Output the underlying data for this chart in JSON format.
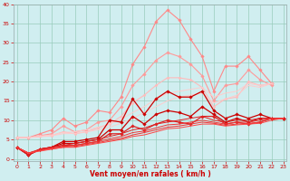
{
  "x": [
    0,
    1,
    2,
    3,
    4,
    5,
    6,
    7,
    8,
    9,
    10,
    11,
    12,
    13,
    14,
    15,
    16,
    17,
    18,
    19,
    20,
    21,
    22,
    23
  ],
  "series": [
    {
      "color": "#ff8888",
      "lw": 0.8,
      "marker": "D",
      "markersize": 1.8,
      "y": [
        5.5,
        5.5,
        6.5,
        7.5,
        10.5,
        8.5,
        9.5,
        12.5,
        12.0,
        16.0,
        24.5,
        29.0,
        35.5,
        38.5,
        36.0,
        31.0,
        26.5,
        17.5,
        24.0,
        24.0,
        26.5,
        23.0,
        19.5,
        null
      ]
    },
    {
      "color": "#ff9999",
      "lw": 0.8,
      "marker": "D",
      "markersize": 1.8,
      "y": [
        5.5,
        5.5,
        6.0,
        6.5,
        8.5,
        7.0,
        7.5,
        9.5,
        10.0,
        13.5,
        19.0,
        22.0,
        25.5,
        27.5,
        26.5,
        24.5,
        21.5,
        15.0,
        19.0,
        19.5,
        23.0,
        20.5,
        19.0,
        null
      ]
    },
    {
      "color": "#ffbbbb",
      "lw": 0.8,
      "marker": "D",
      "markersize": 1.5,
      "y": [
        5.5,
        5.5,
        6.0,
        6.0,
        7.0,
        6.5,
        7.0,
        8.0,
        9.0,
        11.0,
        14.5,
        16.5,
        19.0,
        21.0,
        21.0,
        20.5,
        18.5,
        13.5,
        15.5,
        16.0,
        20.0,
        19.0,
        19.5,
        null
      ]
    },
    {
      "color": "#ffcccc",
      "lw": 0.7,
      "marker": null,
      "markersize": 0,
      "y": [
        5.5,
        5.5,
        5.8,
        6.2,
        6.8,
        7.0,
        7.5,
        8.2,
        9.0,
        10.2,
        12.0,
        13.5,
        15.5,
        17.0,
        17.5,
        18.0,
        18.5,
        16.0,
        17.0,
        17.5,
        19.5,
        19.0,
        19.5,
        null
      ]
    },
    {
      "color": "#ffcccc",
      "lw": 0.7,
      "marker": null,
      "markersize": 0,
      "y": [
        5.5,
        5.5,
        5.7,
        6.0,
        6.5,
        6.6,
        7.0,
        7.5,
        8.2,
        9.2,
        10.5,
        12.0,
        13.5,
        15.0,
        16.0,
        16.5,
        17.0,
        14.5,
        15.5,
        16.5,
        19.0,
        18.5,
        19.5,
        null
      ]
    },
    {
      "color": "#cc0000",
      "lw": 0.9,
      "marker": "D",
      "markersize": 1.8,
      "y": [
        3.0,
        1.0,
        2.5,
        3.0,
        4.5,
        4.5,
        5.0,
        5.5,
        10.0,
        9.5,
        15.5,
        11.5,
        15.5,
        17.5,
        16.0,
        16.0,
        17.5,
        12.5,
        10.5,
        11.5,
        10.5,
        11.5,
        10.5,
        10.5
      ]
    },
    {
      "color": "#cc0000",
      "lw": 0.9,
      "marker": "D",
      "markersize": 1.8,
      "y": [
        3.0,
        1.0,
        2.5,
        3.0,
        4.0,
        4.0,
        4.5,
        5.0,
        7.5,
        7.5,
        11.0,
        9.0,
        11.5,
        12.5,
        12.0,
        11.0,
        13.5,
        11.5,
        9.5,
        10.5,
        9.5,
        10.5,
        10.5,
        10.5
      ]
    },
    {
      "color": "#dd2222",
      "lw": 0.9,
      "marker": "D",
      "markersize": 1.8,
      "y": [
        3.0,
        1.0,
        2.5,
        3.0,
        3.5,
        3.5,
        4.0,
        4.5,
        6.5,
        6.5,
        8.5,
        7.5,
        9.0,
        10.0,
        9.5,
        9.0,
        11.0,
        11.0,
        9.0,
        9.5,
        9.0,
        9.5,
        10.5,
        10.5
      ]
    },
    {
      "color": "#dd2222",
      "lw": 0.7,
      "marker": null,
      "markersize": 0,
      "y": [
        3.0,
        1.5,
        2.5,
        3.0,
        3.5,
        4.0,
        4.5,
        5.0,
        5.8,
        6.5,
        7.5,
        8.0,
        9.0,
        9.5,
        10.0,
        10.5,
        11.0,
        10.0,
        9.5,
        10.0,
        10.0,
        10.5,
        10.5,
        10.5
      ]
    },
    {
      "color": "#ee3333",
      "lw": 0.7,
      "marker": null,
      "markersize": 0,
      "y": [
        3.0,
        1.5,
        2.3,
        2.8,
        3.2,
        3.5,
        4.0,
        4.5,
        5.2,
        5.8,
        6.8,
        7.2,
        8.0,
        8.8,
        9.0,
        9.5,
        10.0,
        9.5,
        9.0,
        9.5,
        9.5,
        10.0,
        10.5,
        10.5
      ]
    },
    {
      "color": "#ee3333",
      "lw": 0.7,
      "marker": null,
      "markersize": 0,
      "y": [
        3.0,
        1.5,
        2.2,
        2.6,
        3.0,
        3.2,
        3.7,
        4.2,
        4.8,
        5.3,
        6.2,
        6.8,
        7.5,
        8.2,
        8.5,
        9.0,
        9.5,
        9.2,
        8.7,
        9.0,
        9.2,
        9.5,
        10.5,
        10.5
      ]
    },
    {
      "color": "#ff4444",
      "lw": 0.7,
      "marker": null,
      "markersize": 0,
      "y": [
        3.0,
        1.5,
        2.0,
        2.5,
        3.0,
        3.0,
        3.5,
        4.0,
        4.5,
        5.0,
        5.8,
        6.2,
        7.0,
        7.8,
        8.0,
        8.5,
        9.0,
        9.0,
        8.5,
        8.8,
        9.0,
        9.2,
        10.0,
        10.5
      ]
    }
  ],
  "xlim": [
    -0.3,
    23.3
  ],
  "ylim": [
    -0.5,
    40
  ],
  "yticks": [
    0,
    5,
    10,
    15,
    20,
    25,
    30,
    35,
    40
  ],
  "xticks": [
    0,
    1,
    2,
    3,
    4,
    5,
    6,
    7,
    8,
    9,
    10,
    11,
    12,
    13,
    14,
    15,
    16,
    17,
    18,
    19,
    20,
    21,
    22,
    23
  ],
  "xlabel": "Vent moyen/en rafales ( km/h )",
  "bg_color": "#d0eef0",
  "grid_color": "#99ccbb",
  "tick_color": "#cc0000",
  "label_color": "#cc0000"
}
